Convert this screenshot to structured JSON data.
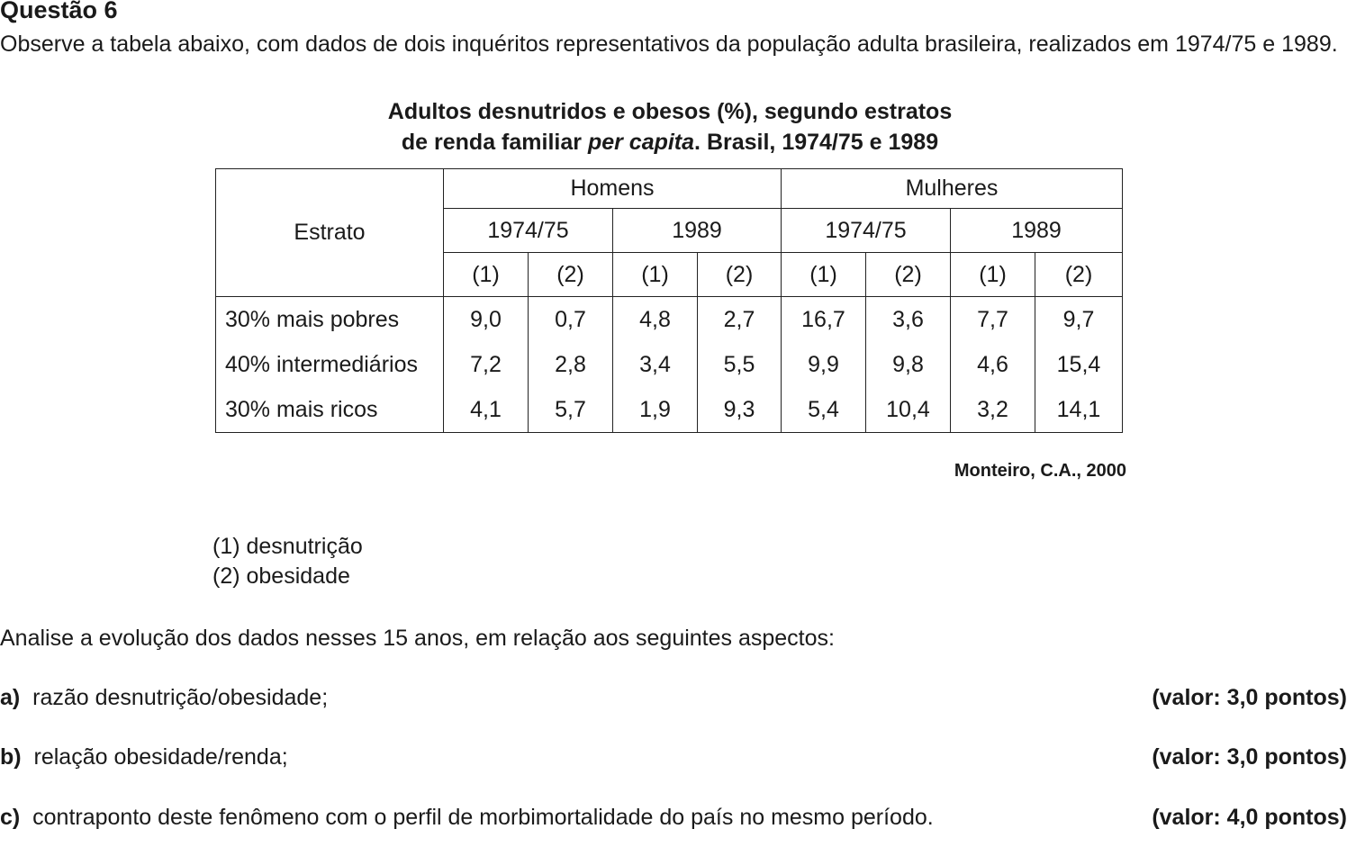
{
  "question": {
    "title": "Questão 6",
    "intro": "Observe a tabela abaixo, com dados de dois inquéritos representativos da população adulta brasileira, realizados em 1974/75 e 1989."
  },
  "table": {
    "caption_line1": "Adultos desnutridos e obesos (%), segundo estratos",
    "caption_line2_pre": "de renda familiar ",
    "caption_line2_italic": "per capita",
    "caption_line2_post": ". Brasil, 1974/75 e 1989",
    "stratum_header": "Estrato",
    "groups": [
      "Homens",
      "Mulheres"
    ],
    "years": [
      "1974/75",
      "1989",
      "1974/75",
      "1989"
    ],
    "subcols": [
      "(1)",
      "(2)",
      "(1)",
      "(2)",
      "(1)",
      "(2)",
      "(1)",
      "(2)"
    ],
    "rows": [
      {
        "stratum": "30% mais pobres",
        "values": [
          "9,0",
          "0,7",
          "4,8",
          "2,7",
          "16,7",
          "3,6",
          "7,7",
          "9,7"
        ]
      },
      {
        "stratum": "40% intermediários",
        "values": [
          "7,2",
          "2,8",
          "3,4",
          "5,5",
          "9,9",
          "9,8",
          "4,6",
          "15,4"
        ]
      },
      {
        "stratum": "30% mais ricos",
        "values": [
          "4,1",
          "5,7",
          "1,9",
          "9,3",
          "5,4",
          "10,4",
          "3,2",
          "14,1"
        ]
      }
    ],
    "source": "Monteiro, C.A., 2000"
  },
  "legend": [
    "(1)  desnutrição",
    "(2)  obesidade"
  ],
  "prompt": "Analise a evolução dos dados nesses 15 anos, em relação aos seguintes aspectos:",
  "items": [
    {
      "letter": "a)",
      "text": "razão desnutrição/obesidade;",
      "points": "(valor: 3,0 pontos)"
    },
    {
      "letter": "b)",
      "text": "relação obesidade/renda;",
      "points": "(valor: 3,0 pontos)"
    },
    {
      "letter": "c)",
      "text": "contraponto deste fenômeno com o perfil de morbimortalidade do país no mesmo período.",
      "points": "(valor: 4,0 pontos)"
    }
  ]
}
